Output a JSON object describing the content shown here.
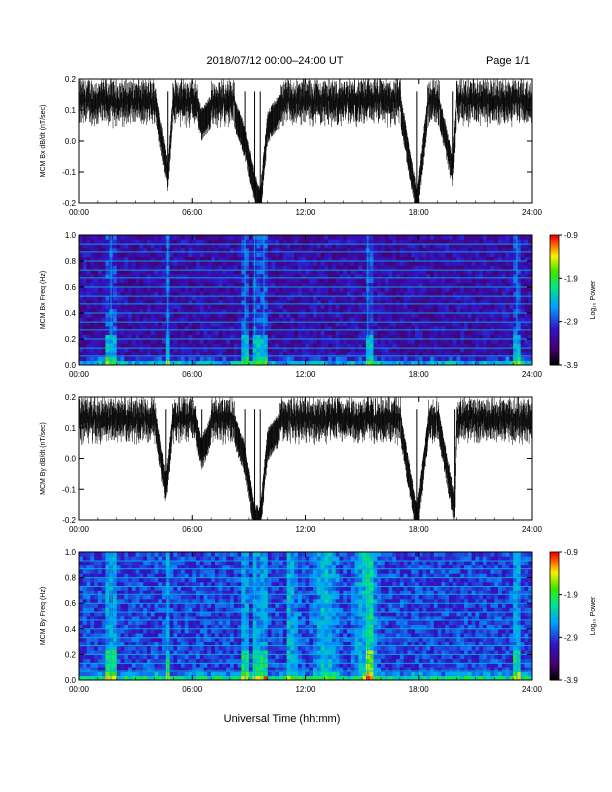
{
  "header": {
    "title": "2018/07/12  00:00–24:00 UT",
    "page": "Page 1/1"
  },
  "xlabel": "Universal Time (hh:mm)",
  "colors": {
    "trace": "#000000",
    "spectrogram_colormap": "rainbow (black-purple-blue-cyan-green-yellow-red)"
  },
  "chart_data": [
    {
      "type": "line",
      "title": "",
      "xlabel": "Universal Time (hh:mm)",
      "ylabel": "MCM Bx dB/dt (nT/sec)",
      "xticks": [
        "00:00",
        "06:00",
        "12:00",
        "18:00",
        "24:00"
      ],
      "xlim": [
        0,
        24
      ],
      "ylim": [
        -0.2,
        0.2
      ],
      "yticks": [
        "-0.2",
        "-0.1",
        "0.0",
        "0.1",
        "0.2"
      ],
      "series": [
        {
          "x": [
            0,
            1,
            2,
            3,
            4,
            4.7,
            5,
            6,
            6.5,
            7,
            8,
            8.8,
            9.3,
            9.6,
            10,
            11,
            12,
            13,
            14,
            15,
            16,
            17,
            17.9,
            18.5,
            19,
            19.8,
            20,
            21,
            22,
            23,
            24
          ],
          "y": [
            0.15,
            0.14,
            0.15,
            0.15,
            0.14,
            -0.11,
            0.13,
            0.15,
            0.06,
            0.1,
            0.14,
            0.0,
            -0.15,
            -0.2,
            0.05,
            0.13,
            0.14,
            0.14,
            0.14,
            0.13,
            0.12,
            0.12,
            -0.2,
            0.12,
            0.13,
            -0.09,
            0.12,
            0.13,
            0.13,
            0.14,
            0.15
          ]
        }
      ]
    },
    {
      "type": "heatmap",
      "title": "",
      "xlabel": "Universal Time (hh:mm)",
      "ylabel": "MCM Bx Freq (Hz)",
      "xticks": [
        "00:00",
        "06:00",
        "12:00",
        "18:00",
        "24:00"
      ],
      "xlim": [
        0,
        24
      ],
      "ylim": [
        0,
        1.0
      ],
      "yticks": [
        "0.0",
        "0.2",
        "0.4",
        "0.6",
        "0.8",
        "1.0"
      ],
      "colorbar": {
        "label": "Log₁₀ Power",
        "ticks": [
          "-0.9",
          "-1.9",
          "-2.9",
          "-3.9"
        ],
        "range": [
          -3.9,
          -0.9
        ]
      },
      "features": {
        "lines_hz": [
          0.07,
          0.13,
          0.2,
          0.27,
          0.33,
          0.4,
          0.47,
          0.53,
          0.6,
          0.67,
          0.73,
          0.8,
          0.87,
          0.93
        ],
        "bursts_h": [
          1.7,
          4.7,
          8.8,
          9.3,
          9.8,
          15.3,
          23.2
        ]
      }
    },
    {
      "type": "line",
      "title": "",
      "xlabel": "Universal Time (hh:mm)",
      "ylabel": "MCM By dB/dt (nT/sec)",
      "xticks": [
        "00:00",
        "06:00",
        "12:00",
        "18:00",
        "24:00"
      ],
      "xlim": [
        0,
        24
      ],
      "ylim": [
        -0.2,
        0.2
      ],
      "yticks": [
        "-0.2",
        "-0.1",
        "0.0",
        "0.1",
        "0.2"
      ],
      "series": [
        {
          "x": [
            0,
            1,
            2,
            3,
            4,
            4.6,
            5,
            6,
            6.5,
            7,
            8,
            8.8,
            9.3,
            9.6,
            10,
            11,
            12,
            13,
            14,
            15,
            16,
            17,
            17.9,
            18.5,
            19,
            19.9,
            20,
            21,
            22,
            23,
            24
          ],
          "y": [
            0.15,
            0.14,
            0.15,
            0.15,
            0.14,
            -0.1,
            0.13,
            0.15,
            0.02,
            0.1,
            0.14,
            0.0,
            -0.2,
            -0.2,
            0.05,
            0.13,
            0.14,
            0.14,
            0.14,
            0.13,
            0.12,
            0.12,
            -0.2,
            0.1,
            0.13,
            -0.16,
            0.12,
            0.13,
            0.13,
            0.14,
            0.15
          ]
        }
      ]
    },
    {
      "type": "heatmap",
      "title": "",
      "xlabel": "Universal Time (hh:mm)",
      "ylabel": "MCM By Freq (Hz)",
      "xticks": [
        "00:00",
        "06:00",
        "12:00",
        "18:00",
        "24:00"
      ],
      "xlim": [
        0,
        24
      ],
      "ylim": [
        0,
        1.0
      ],
      "yticks": [
        "0.0",
        "0.2",
        "0.4",
        "0.6",
        "0.8",
        "1.0"
      ],
      "colorbar": {
        "label": "Log₁₀ Power",
        "ticks": [
          "-0.9",
          "-1.9",
          "-2.9",
          "-3.9"
        ],
        "range": [
          -3.9,
          -0.9
        ]
      },
      "features": {
        "lines_hz": [
          0.07,
          0.13,
          0.2,
          0.27,
          0.33,
          0.4,
          0.47,
          0.53,
          0.6,
          0.67,
          0.73,
          0.8,
          0.87,
          0.93
        ],
        "bursts_h": [
          1.7,
          4.7,
          8.8,
          9.3,
          9.8,
          15.3,
          23.2
        ]
      }
    }
  ]
}
